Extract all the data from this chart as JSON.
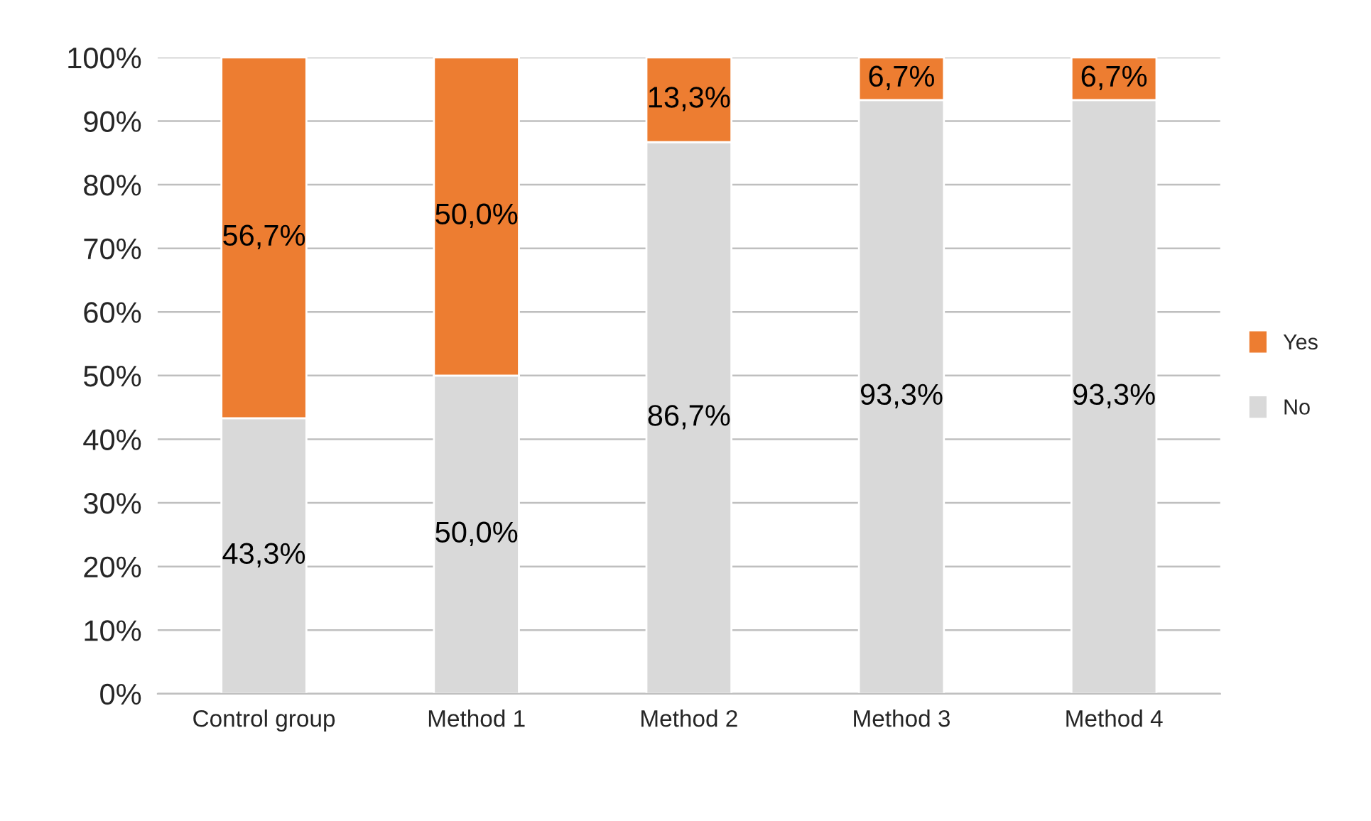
{
  "chart_data": {
    "type": "bar",
    "stacked": true,
    "categories": [
      "Control group",
      "Method 1",
      "Method 2",
      "Method 3",
      "Method 4"
    ],
    "series": [
      {
        "name": "No",
        "color": "#d9d9d9",
        "values": [
          43.3,
          50.0,
          86.7,
          93.3,
          93.3
        ],
        "value_labels": [
          "43,3%",
          "50,0%",
          "86,7%",
          "93,3%",
          "93,3%"
        ]
      },
      {
        "name": "Yes",
        "color": "#ed7d31",
        "values": [
          56.7,
          50.0,
          13.3,
          6.7,
          6.7
        ],
        "value_labels": [
          "56,7%",
          "50,0%",
          "13,3%",
          "6,7%",
          "6,7%"
        ]
      }
    ],
    "ylim": [
      0,
      100
    ],
    "yticks": [
      {
        "value": 0,
        "label": "0%"
      },
      {
        "value": 10,
        "label": "10%"
      },
      {
        "value": 20,
        "label": "20%"
      },
      {
        "value": 30,
        "label": "30%"
      },
      {
        "value": 40,
        "label": "40%"
      },
      {
        "value": 50,
        "label": "50%"
      },
      {
        "value": 60,
        "label": "60%"
      },
      {
        "value": 70,
        "label": "70%"
      },
      {
        "value": 80,
        "label": "80%"
      },
      {
        "value": 90,
        "label": "90%"
      },
      {
        "value": 100,
        "label": "100%"
      }
    ],
    "grid": "y",
    "legend": "right"
  }
}
